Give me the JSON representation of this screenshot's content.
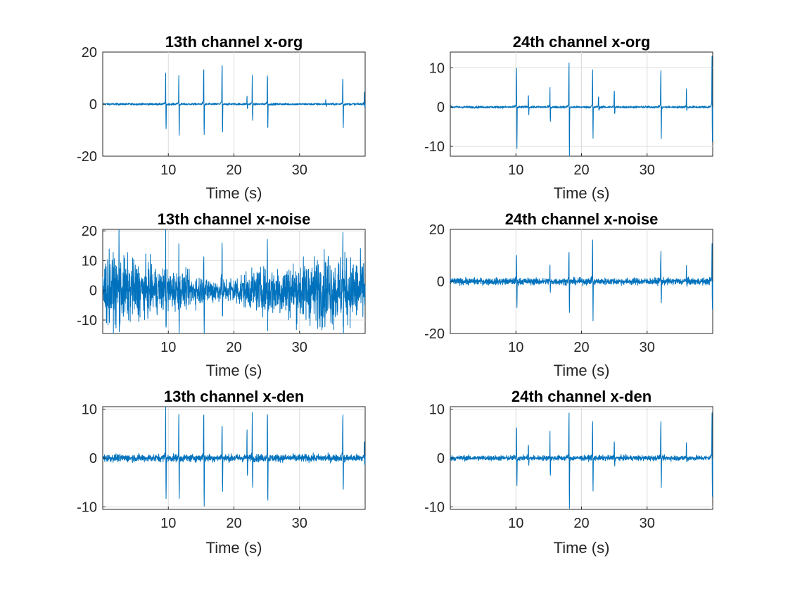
{
  "line_color": "#0072BD",
  "chart_data": [
    {
      "type": "line",
      "title": "13th channel x-org",
      "xlabel": "Time (s)",
      "ylabel": "",
      "xlim": [
        0,
        40
      ],
      "ylim": [
        -20,
        20
      ],
      "xticks": [
        10,
        20,
        30
      ],
      "xtick_labels": [
        "10",
        "20",
        "30"
      ],
      "yticks": [
        -20,
        0,
        20
      ],
      "ytick_labels": [
        "-20",
        "0",
        "20"
      ],
      "grid": true,
      "noise_amplitude": 0.7,
      "spikes": [
        {
          "t": 9.6,
          "up": 12,
          "down": -11
        },
        {
          "t": 11.6,
          "up": 11,
          "down": -13
        },
        {
          "t": 15.4,
          "up": 15,
          "down": -13
        },
        {
          "t": 18.2,
          "up": 17,
          "down": -12
        },
        {
          "t": 22.0,
          "up": 3,
          "down": -2
        },
        {
          "t": 22.8,
          "up": 11,
          "down": -7
        },
        {
          "t": 25.1,
          "up": 12,
          "down": -11
        },
        {
          "t": 34.0,
          "up": 2,
          "down": -1
        },
        {
          "t": 36.6,
          "up": 11,
          "down": -10
        },
        {
          "t": 39.9,
          "up": 5,
          "down": -1
        }
      ]
    },
    {
      "type": "line",
      "title": "24th channel x-org",
      "xlabel": "Time (s)",
      "ylabel": "",
      "xlim": [
        0,
        40
      ],
      "ylim": [
        -12.5,
        14
      ],
      "xticks": [
        10,
        20,
        30
      ],
      "xtick_labels": [
        "10",
        "20",
        "30"
      ],
      "yticks": [
        -10,
        0,
        10
      ],
      "ytick_labels": [
        "-10",
        "0",
        "10"
      ],
      "grid": true,
      "noise_amplitude": 0.5,
      "spikes": [
        {
          "t": 10.1,
          "up": 10.5,
          "down": -10.5
        },
        {
          "t": 11.9,
          "up": 3,
          "down": -2
        },
        {
          "t": 15.2,
          "up": 5,
          "down": -4
        },
        {
          "t": 18.1,
          "up": 12,
          "down": -12.5
        },
        {
          "t": 21.7,
          "up": 10,
          "down": -8
        },
        {
          "t": 22.6,
          "up": 3,
          "down": -1
        },
        {
          "t": 25.0,
          "up": 4.5,
          "down": -2
        },
        {
          "t": 32.1,
          "up": 10,
          "down": -8
        },
        {
          "t": 36.0,
          "up": 4.5,
          "down": -1
        },
        {
          "t": 39.9,
          "up": 14,
          "down": -11
        }
      ]
    },
    {
      "type": "line",
      "title": "13th channel x-noise",
      "xlabel": "Time (s)",
      "ylabel": "",
      "xlim": [
        0,
        40
      ],
      "ylim": [
        -14.5,
        20.5
      ],
      "xticks": [
        10,
        20,
        30
      ],
      "xtick_labels": [
        "10",
        "20",
        "30"
      ],
      "yticks": [
        -10,
        0,
        10,
        20
      ],
      "ytick_labels": [
        "-10",
        "0",
        "10",
        "20"
      ],
      "grid": true,
      "noise_amplitude": 5.5,
      "noise_envelope": [
        {
          "t": 0,
          "a": 9
        },
        {
          "t": 4,
          "a": 8
        },
        {
          "t": 8,
          "a": 6
        },
        {
          "t": 14,
          "a": 4
        },
        {
          "t": 18,
          "a": 3
        },
        {
          "t": 22,
          "a": 4.5
        },
        {
          "t": 28,
          "a": 7
        },
        {
          "t": 34,
          "a": 9
        },
        {
          "t": 40,
          "a": 8
        }
      ],
      "spikes": [
        {
          "t": 2.5,
          "up": 17,
          "down": -12
        },
        {
          "t": 9.6,
          "up": 20,
          "down": -14
        },
        {
          "t": 11.6,
          "up": 13,
          "down": -14
        },
        {
          "t": 15.4,
          "up": 16,
          "down": -14
        },
        {
          "t": 18.2,
          "up": 16,
          "down": -12
        },
        {
          "t": 25.1,
          "up": 16,
          "down": -12
        },
        {
          "t": 34.4,
          "up": 18,
          "down": -14
        },
        {
          "t": 36.6,
          "up": 17,
          "down": -14
        }
      ]
    },
    {
      "type": "line",
      "title": "24th channel x-noise",
      "xlabel": "Time (s)",
      "ylabel": "",
      "xlim": [
        0,
        40
      ],
      "ylim": [
        -20,
        20
      ],
      "xticks": [
        10,
        20,
        30
      ],
      "xtick_labels": [
        "10",
        "20",
        "30"
      ],
      "yticks": [
        -20,
        0,
        20
      ],
      "ytick_labels": [
        "-20",
        "0",
        "20"
      ],
      "grid": true,
      "noise_amplitude": 2.2,
      "spikes": [
        {
          "t": 10.1,
          "up": 11,
          "down": -10
        },
        {
          "t": 15.2,
          "up": 6,
          "down": -4
        },
        {
          "t": 18.1,
          "up": 13,
          "down": -12
        },
        {
          "t": 21.7,
          "up": 18,
          "down": -15
        },
        {
          "t": 32.1,
          "up": 12,
          "down": -9
        },
        {
          "t": 36.0,
          "up": 6,
          "down": -2
        },
        {
          "t": 39.9,
          "up": 15,
          "down": -13
        }
      ]
    },
    {
      "type": "line",
      "title": "13th channel x-den",
      "xlabel": "Time (s)",
      "ylabel": "",
      "xlim": [
        0,
        40
      ],
      "ylim": [
        -10.5,
        10.5
      ],
      "xticks": [
        10,
        20,
        30
      ],
      "xtick_labels": [
        "10",
        "20",
        "30"
      ],
      "yticks": [
        -10,
        0,
        10
      ],
      "ytick_labels": [
        "-10",
        "0",
        "10"
      ],
      "grid": true,
      "noise_amplitude": 1.3,
      "spikes": [
        {
          "t": 9.6,
          "up": 10.5,
          "down": -8.5
        },
        {
          "t": 11.6,
          "up": 8.5,
          "down": -8.8
        },
        {
          "t": 15.4,
          "up": 10,
          "down": -10.5
        },
        {
          "t": 18.2,
          "up": 7.5,
          "down": -7
        },
        {
          "t": 22.0,
          "up": 5,
          "down": -4
        },
        {
          "t": 22.8,
          "up": 9,
          "down": -6
        },
        {
          "t": 25.1,
          "up": 10,
          "down": -10
        },
        {
          "t": 36.6,
          "up": 9.5,
          "down": -7
        },
        {
          "t": 39.9,
          "up": 4,
          "down": -2
        }
      ]
    },
    {
      "type": "line",
      "title": "24th channel x-den",
      "xlabel": "Time (s)",
      "ylabel": "",
      "xlim": [
        0,
        40
      ],
      "ylim": [
        -10.5,
        10.5
      ],
      "xticks": [
        10,
        20,
        30
      ],
      "xtick_labels": [
        "10",
        "20",
        "30"
      ],
      "yticks": [
        -10,
        0,
        10
      ],
      "ytick_labels": [
        "-10",
        "0",
        "10"
      ],
      "grid": true,
      "noise_amplitude": 0.9,
      "spikes": [
        {
          "t": 10.1,
          "up": 7,
          "down": -5.5
        },
        {
          "t": 11.9,
          "up": 3,
          "down": -2
        },
        {
          "t": 15.2,
          "up": 5,
          "down": -4
        },
        {
          "t": 18.1,
          "up": 9.5,
          "down": -10.5
        },
        {
          "t": 21.7,
          "up": 8,
          "down": -7
        },
        {
          "t": 25.0,
          "up": 4,
          "down": -2
        },
        {
          "t": 32.1,
          "up": 8,
          "down": -6
        },
        {
          "t": 36.0,
          "up": 3,
          "down": -1
        },
        {
          "t": 39.9,
          "up": 10,
          "down": -9.5
        }
      ]
    }
  ]
}
